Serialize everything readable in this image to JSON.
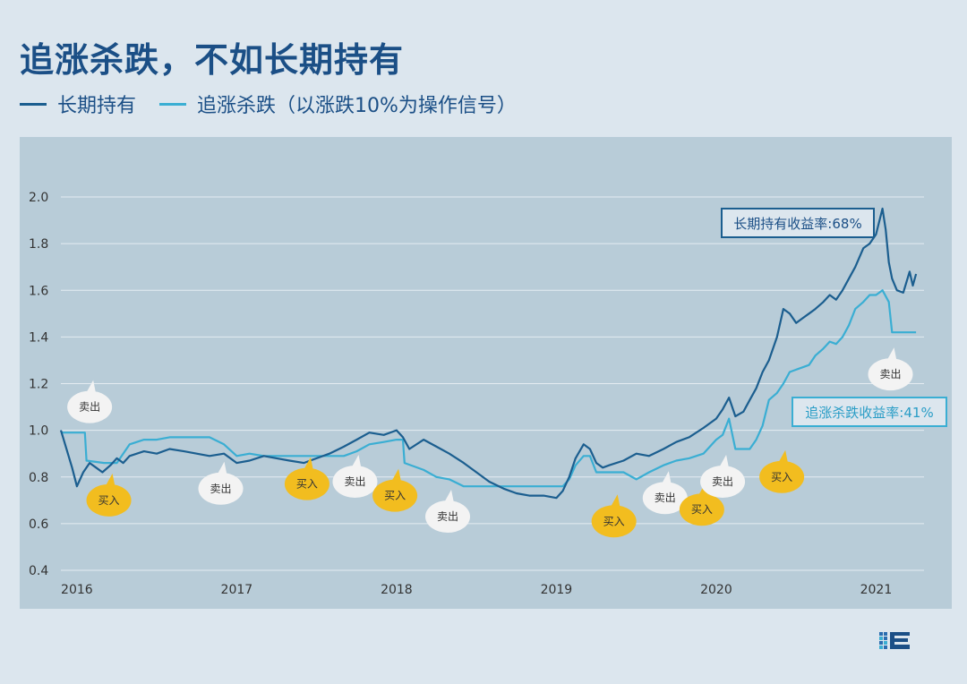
{
  "page": {
    "title": "追涨杀跌，不如长期持有"
  },
  "legend": {
    "items": [
      {
        "label": "长期持有",
        "color": "#1b5e8f"
      },
      {
        "label": "追涨杀跌（以涨跌10%为操作信号）",
        "color": "#3aaed3"
      }
    ]
  },
  "colors": {
    "background": "#dce6ee",
    "panel": "#b8ccd8",
    "gridline": "#e4ecf2",
    "buy_bubble": "#f2bd1f",
    "sell_bubble": "#f3f3f3"
  },
  "annotations": {
    "hold_return": "长期持有收益率:68%",
    "chase_return": "追涨杀跌收益率:41%"
  },
  "logo": {
    "icon": "brand-logo-icon"
  },
  "chart_data": {
    "type": "line",
    "title": "",
    "xlabel": "",
    "ylabel": "",
    "ylim": [
      0.4,
      2.0
    ],
    "xlim": [
      2015.9,
      2021.3
    ],
    "yticks": [
      "0.4",
      "0.6",
      "0.8",
      "1.0",
      "1.2",
      "1.4",
      "1.6",
      "1.8",
      "2.0"
    ],
    "xticks": [
      {
        "value": 2016,
        "label": "2016"
      },
      {
        "value": 2017,
        "label": "2017"
      },
      {
        "value": 2018,
        "label": "2018"
      },
      {
        "value": 2019,
        "label": "2019"
      },
      {
        "value": 2020,
        "label": "2020"
      },
      {
        "value": 2021,
        "label": "2021"
      }
    ],
    "grid": true,
    "series": [
      {
        "name": "长期持有",
        "color": "#1b5e8f",
        "x": [
          2015.9,
          2015.97,
          2016.0,
          2016.04,
          2016.08,
          2016.12,
          2016.16,
          2016.21,
          2016.25,
          2016.29,
          2016.33,
          2016.42,
          2016.5,
          2016.58,
          2016.67,
          2016.75,
          2016.83,
          2016.92,
          2017.0,
          2017.08,
          2017.17,
          2017.25,
          2017.33,
          2017.42,
          2017.5,
          2017.58,
          2017.67,
          2017.75,
          2017.83,
          2017.92,
          2018.0,
          2018.04,
          2018.08,
          2018.17,
          2018.25,
          2018.33,
          2018.42,
          2018.5,
          2018.58,
          2018.67,
          2018.75,
          2018.83,
          2018.92,
          2019.0,
          2019.04,
          2019.08,
          2019.12,
          2019.17,
          2019.21,
          2019.25,
          2019.29,
          2019.33,
          2019.42,
          2019.5,
          2019.58,
          2019.67,
          2019.75,
          2019.83,
          2019.92,
          2020.0,
          2020.04,
          2020.08,
          2020.12,
          2020.17,
          2020.21,
          2020.25,
          2020.29,
          2020.33,
          2020.38,
          2020.42,
          2020.46,
          2020.5,
          2020.54,
          2020.58,
          2020.62,
          2020.67,
          2020.71,
          2020.75,
          2020.79,
          2020.83,
          2020.87,
          2020.92,
          2020.96,
          2021.0,
          2021.04,
          2021.06,
          2021.08,
          2021.1,
          2021.13,
          2021.17,
          2021.21,
          2021.23,
          2021.25
        ],
        "y": [
          1.0,
          0.84,
          0.76,
          0.82,
          0.86,
          0.84,
          0.82,
          0.85,
          0.88,
          0.86,
          0.89,
          0.91,
          0.9,
          0.92,
          0.91,
          0.9,
          0.89,
          0.9,
          0.86,
          0.87,
          0.89,
          0.88,
          0.87,
          0.86,
          0.88,
          0.9,
          0.93,
          0.96,
          0.99,
          0.98,
          1.0,
          0.97,
          0.92,
          0.96,
          0.93,
          0.9,
          0.86,
          0.82,
          0.78,
          0.75,
          0.73,
          0.72,
          0.72,
          0.71,
          0.74,
          0.8,
          0.88,
          0.94,
          0.92,
          0.86,
          0.84,
          0.85,
          0.87,
          0.9,
          0.89,
          0.92,
          0.95,
          0.97,
          1.01,
          1.05,
          1.09,
          1.14,
          1.06,
          1.08,
          1.13,
          1.18,
          1.25,
          1.3,
          1.4,
          1.52,
          1.5,
          1.46,
          1.48,
          1.5,
          1.52,
          1.55,
          1.58,
          1.56,
          1.6,
          1.65,
          1.7,
          1.78,
          1.8,
          1.84,
          1.95,
          1.86,
          1.72,
          1.65,
          1.6,
          1.59,
          1.68,
          1.62,
          1.67
        ]
      },
      {
        "name": "追涨杀跌（以涨跌10%为操作信号）",
        "color": "#3aaed3",
        "x": [
          2015.9,
          2016.05,
          2016.06,
          2016.17,
          2016.25,
          2016.33,
          2016.42,
          2016.5,
          2016.58,
          2016.67,
          2016.75,
          2016.83,
          2016.92,
          2017.0,
          2017.08,
          2017.17,
          2017.25,
          2017.33,
          2017.42,
          2017.5,
          2017.58,
          2017.67,
          2017.75,
          2017.83,
          2017.92,
          2018.0,
          2018.04,
          2018.05,
          2018.17,
          2018.25,
          2018.33,
          2018.42,
          2018.5,
          2018.58,
          2018.67,
          2018.75,
          2018.83,
          2018.92,
          2019.0,
          2019.04,
          2019.08,
          2019.12,
          2019.17,
          2019.21,
          2019.25,
          2019.29,
          2019.33,
          2019.42,
          2019.5,
          2019.58,
          2019.67,
          2019.75,
          2019.83,
          2019.92,
          2020.0,
          2020.04,
          2020.08,
          2020.12,
          2020.17,
          2020.21,
          2020.25,
          2020.29,
          2020.33,
          2020.38,
          2020.42,
          2020.46,
          2020.5,
          2020.54,
          2020.58,
          2020.62,
          2020.67,
          2020.71,
          2020.75,
          2020.79,
          2020.83,
          2020.87,
          2020.92,
          2020.96,
          2021.0,
          2021.04,
          2021.08,
          2021.1,
          2021.13,
          2021.17,
          2021.21,
          2021.25
        ],
        "y": [
          0.99,
          0.99,
          0.87,
          0.86,
          0.86,
          0.94,
          0.96,
          0.96,
          0.97,
          0.97,
          0.97,
          0.97,
          0.94,
          0.89,
          0.9,
          0.89,
          0.89,
          0.89,
          0.89,
          0.89,
          0.89,
          0.89,
          0.91,
          0.94,
          0.95,
          0.96,
          0.96,
          0.86,
          0.83,
          0.8,
          0.79,
          0.76,
          0.76,
          0.76,
          0.76,
          0.76,
          0.76,
          0.76,
          0.76,
          0.76,
          0.79,
          0.85,
          0.89,
          0.89,
          0.82,
          0.82,
          0.82,
          0.82,
          0.79,
          0.82,
          0.85,
          0.87,
          0.88,
          0.9,
          0.96,
          0.98,
          1.05,
          0.92,
          0.92,
          0.92,
          0.96,
          1.02,
          1.13,
          1.16,
          1.2,
          1.25,
          1.26,
          1.27,
          1.28,
          1.32,
          1.35,
          1.38,
          1.37,
          1.4,
          1.45,
          1.52,
          1.55,
          1.58,
          1.58,
          1.6,
          1.55,
          1.42,
          1.42,
          1.42,
          1.42,
          1.42
        ]
      }
    ],
    "signals": [
      {
        "label": "卖出",
        "kind": "sell",
        "x": 2016.08,
        "y": 1.1
      },
      {
        "label": "买入",
        "kind": "buy",
        "x": 2016.2,
        "y": 0.7
      },
      {
        "label": "卖出",
        "kind": "sell",
        "x": 2016.9,
        "y": 0.75
      },
      {
        "label": "买入",
        "kind": "buy",
        "x": 2017.44,
        "y": 0.77
      },
      {
        "label": "卖出",
        "kind": "sell",
        "x": 2017.74,
        "y": 0.78
      },
      {
        "label": "买入",
        "kind": "buy",
        "x": 2017.99,
        "y": 0.72
      },
      {
        "label": "卖出",
        "kind": "sell",
        "x": 2018.32,
        "y": 0.63
      },
      {
        "label": "买入",
        "kind": "buy",
        "x": 2019.36,
        "y": 0.61
      },
      {
        "label": "卖出",
        "kind": "sell",
        "x": 2019.68,
        "y": 0.71
      },
      {
        "label": "买入",
        "kind": "buy",
        "x": 2019.91,
        "y": 0.66
      },
      {
        "label": "卖出",
        "kind": "sell",
        "x": 2020.04,
        "y": 0.78
      },
      {
        "label": "买入",
        "kind": "buy",
        "x": 2020.41,
        "y": 0.8
      },
      {
        "label": "卖出",
        "kind": "sell",
        "x": 2021.09,
        "y": 1.24
      }
    ]
  }
}
